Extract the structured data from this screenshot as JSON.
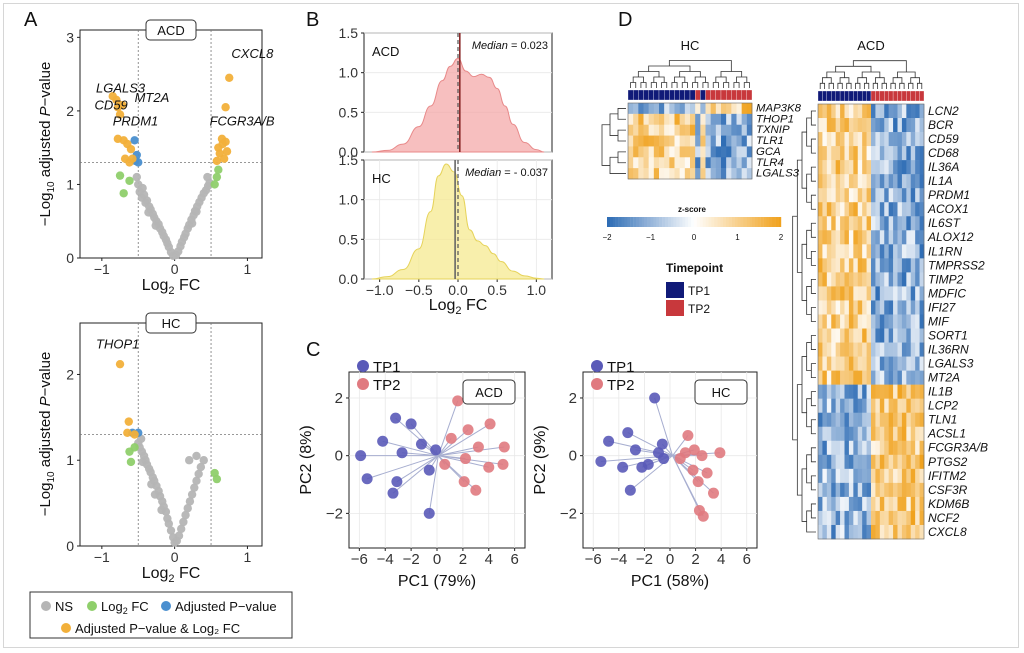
{
  "panel_letters": [
    "A",
    "B",
    "C",
    "D"
  ],
  "colors": {
    "ns": "#b5b5b5",
    "log2fc": "#8fcf6b",
    "padj": "#4a8fcf",
    "both": "#f2b03a",
    "tp1": "#5a5ab8",
    "tp2": "#e07a80",
    "tp1_bar": "#101a78",
    "tp2_bar": "#c8383c",
    "acd_fill": "#f4a9a9",
    "hc_fill": "#f6ea90",
    "neg": "#2f6db5",
    "pos": "#f0a21e"
  },
  "legend": {
    "items": [
      "NS",
      "Log₂ FC",
      "Adjusted P−value",
      "Adjusted P−value & Log₂ FC"
    ]
  },
  "chart_data": [
    {
      "id": "A-top",
      "type": "scatter",
      "facet": "ACD",
      "xlabel": "Log₂ FC",
      "ylabel": "−Log₁₀ adjusted P−value",
      "xlim": [
        -1.3,
        1.2
      ],
      "ylim": [
        0,
        3.1
      ],
      "xticks": [
        -1,
        0,
        1
      ],
      "yticks": [
        0,
        1,
        2,
        3
      ],
      "thresholds": {
        "x": [
          -0.5,
          0.5
        ],
        "y": 1.3
      },
      "points": {
        "ns": [
          [
            -0.48,
            0.9
          ],
          [
            -0.45,
            0.82
          ],
          [
            -0.42,
            0.86
          ],
          [
            -0.4,
            0.75
          ],
          [
            -0.38,
            0.78
          ],
          [
            -0.35,
            0.7
          ],
          [
            -0.33,
            0.66
          ],
          [
            -0.3,
            0.6
          ],
          [
            -0.28,
            0.55
          ],
          [
            -0.25,
            0.5
          ],
          [
            -0.22,
            0.46
          ],
          [
            -0.2,
            0.4
          ],
          [
            -0.17,
            0.35
          ],
          [
            -0.15,
            0.3
          ],
          [
            -0.12,
            0.25
          ],
          [
            -0.1,
            0.2
          ],
          [
            -0.08,
            0.15
          ],
          [
            -0.05,
            0.08
          ],
          [
            -0.02,
            0.03
          ],
          [
            0.02,
            0.04
          ],
          [
            0.05,
            0.09
          ],
          [
            0.08,
            0.16
          ],
          [
            0.1,
            0.22
          ],
          [
            0.13,
            0.28
          ],
          [
            0.15,
            0.33
          ],
          [
            0.18,
            0.4
          ],
          [
            0.2,
            0.45
          ],
          [
            0.23,
            0.52
          ],
          [
            0.26,
            0.58
          ],
          [
            0.28,
            0.64
          ],
          [
            0.31,
            0.7
          ],
          [
            0.34,
            0.76
          ],
          [
            0.37,
            0.82
          ],
          [
            0.4,
            0.88
          ],
          [
            0.43,
            0.92
          ],
          [
            0.46,
            0.98
          ],
          [
            0.48,
            1.02
          ],
          [
            -0.5,
            1.0
          ],
          [
            -0.44,
            0.95
          ],
          [
            -0.52,
            1.1
          ],
          [
            0.45,
            1.1
          ],
          [
            -0.36,
            0.62
          ],
          [
            0.3,
            0.63
          ],
          [
            -0.26,
            0.44
          ],
          [
            0.24,
            0.47
          ]
        ],
        "log2fc": [
          [
            -0.75,
            1.12
          ],
          [
            -0.7,
            0.88
          ],
          [
            0.6,
            1.2
          ],
          [
            0.58,
            1.1
          ],
          [
            -0.62,
            1.05
          ],
          [
            0.55,
            1.0
          ]
        ],
        "padj": [
          [
            -0.55,
            1.6
          ],
          [
            -0.52,
            1.4
          ],
          [
            -0.54,
            1.32
          ],
          [
            -0.5,
            1.3
          ]
        ],
        "both": [
          [
            -0.85,
            2.2
          ],
          [
            -0.8,
            2.15
          ],
          [
            -0.78,
            2.05
          ],
          [
            -0.75,
            1.95
          ],
          [
            -0.72,
            2.08
          ],
          [
            0.75,
            2.45
          ],
          [
            0.7,
            2.05
          ],
          [
            -0.78,
            1.62
          ],
          [
            -0.7,
            1.6
          ],
          [
            -0.65,
            1.55
          ],
          [
            -0.6,
            1.48
          ],
          [
            -0.68,
            1.35
          ],
          [
            -0.62,
            1.3
          ],
          [
            -0.58,
            1.35
          ],
          [
            0.65,
            1.62
          ],
          [
            0.7,
            1.58
          ],
          [
            0.6,
            1.5
          ],
          [
            0.62,
            1.42
          ],
          [
            0.68,
            1.35
          ],
          [
            0.58,
            1.32
          ],
          [
            0.66,
            1.55
          ],
          [
            0.72,
            1.45
          ]
        ]
      },
      "labels": [
        {
          "text": "CXCL8",
          "x": 0.78,
          "y": 2.72
        },
        {
          "text": "LGALS3",
          "x": -1.08,
          "y": 2.25
        },
        {
          "text": "MT2A",
          "x": -0.55,
          "y": 2.12
        },
        {
          "text": "CD59",
          "x": -1.1,
          "y": 2.02
        },
        {
          "text": "PRDM1",
          "x": -0.85,
          "y": 1.8
        },
        {
          "text": "FCGR3A/B",
          "x": 0.48,
          "y": 1.8
        }
      ]
    },
    {
      "id": "A-bottom",
      "type": "scatter",
      "facet": "HC",
      "xlabel": "Log₂ FC",
      "ylabel": "−Log₁₀ adjusted P−value",
      "xlim": [
        -1.3,
        1.2
      ],
      "ylim": [
        0,
        2.6
      ],
      "xticks": [
        -1,
        0,
        1
      ],
      "yticks": [
        0,
        1,
        2
      ],
      "thresholds": {
        "x": [
          -0.5,
          0.5
        ],
        "y": 1.3
      },
      "points": {
        "ns": [
          [
            -0.48,
            1.15
          ],
          [
            -0.45,
            1.1
          ],
          [
            -0.42,
            1.05
          ],
          [
            -0.4,
            1.0
          ],
          [
            -0.38,
            0.95
          ],
          [
            -0.35,
            0.9
          ],
          [
            -0.33,
            0.86
          ],
          [
            -0.3,
            0.8
          ],
          [
            -0.28,
            0.76
          ],
          [
            -0.25,
            0.7
          ],
          [
            -0.22,
            0.64
          ],
          [
            -0.2,
            0.58
          ],
          [
            -0.17,
            0.52
          ],
          [
            -0.15,
            0.46
          ],
          [
            -0.12,
            0.4
          ],
          [
            -0.1,
            0.32
          ],
          [
            -0.08,
            0.26
          ],
          [
            -0.05,
            0.18
          ],
          [
            -0.02,
            0.1
          ],
          [
            0.0,
            0.04
          ],
          [
            0.03,
            0.06
          ],
          [
            0.06,
            0.12
          ],
          [
            0.09,
            0.2
          ],
          [
            0.12,
            0.28
          ],
          [
            0.15,
            0.36
          ],
          [
            0.18,
            0.44
          ],
          [
            0.21,
            0.52
          ],
          [
            0.24,
            0.6
          ],
          [
            0.27,
            0.68
          ],
          [
            0.3,
            0.76
          ],
          [
            0.33,
            0.84
          ],
          [
            0.36,
            0.92
          ],
          [
            0.4,
            1.0
          ],
          [
            0.3,
            1.05
          ],
          [
            0.2,
            1.0
          ],
          [
            -0.5,
            1.2
          ],
          [
            -0.46,
            1.25
          ],
          [
            -0.44,
            0.98
          ],
          [
            -0.32,
            0.72
          ],
          [
            -0.27,
            0.6
          ],
          [
            -0.18,
            0.42
          ]
        ],
        "log2fc": [
          [
            -0.62,
            1.1
          ],
          [
            -0.6,
            0.98
          ],
          [
            -0.55,
            1.15
          ],
          [
            0.55,
            0.85
          ],
          [
            0.58,
            0.78
          ]
        ],
        "padj": [
          [
            -0.58,
            1.32
          ],
          [
            -0.5,
            1.32
          ]
        ],
        "both": [
          [
            -0.75,
            2.12
          ],
          [
            -0.63,
            1.45
          ],
          [
            -0.65,
            1.32
          ],
          [
            -0.55,
            1.3
          ]
        ]
      },
      "labels": [
        {
          "text": "THOP1",
          "x": -1.08,
          "y": 2.3
        }
      ]
    },
    {
      "id": "B",
      "type": "area",
      "facets": [
        "ACD",
        "HC"
      ],
      "xlabel": "Log₂ FC",
      "xlim": [
        -1.2,
        1.2
      ],
      "ylim": [
        0,
        1.5
      ],
      "xticks": [
        -1.0,
        -0.5,
        0.0,
        0.5,
        1.0
      ],
      "yticks": [
        0.0,
        0.5,
        1.0,
        1.5
      ],
      "series": [
        {
          "name": "ACD",
          "median": 0.023,
          "median_label": "Median = 0.023",
          "x": [
            -1.1,
            -0.9,
            -0.7,
            -0.5,
            -0.35,
            -0.2,
            -0.1,
            0,
            0.1,
            0.2,
            0.3,
            0.4,
            0.5,
            0.6,
            0.7,
            0.85,
            1.0,
            1.1
          ],
          "y": [
            0.0,
            0.02,
            0.1,
            0.32,
            0.58,
            0.9,
            1.08,
            1.18,
            1.02,
            0.95,
            0.98,
            0.94,
            0.8,
            0.58,
            0.35,
            0.12,
            0.03,
            0.0
          ]
        },
        {
          "name": "HC",
          "median": -0.037,
          "median_label": "Median = - 0.037",
          "x": [
            -1.1,
            -0.9,
            -0.7,
            -0.5,
            -0.35,
            -0.25,
            -0.15,
            -0.05,
            0.05,
            0.15,
            0.25,
            0.35,
            0.45,
            0.55,
            0.7,
            0.85,
            1.0,
            1.1
          ],
          "y": [
            0.0,
            0.03,
            0.12,
            0.38,
            0.85,
            1.3,
            1.45,
            1.35,
            1.05,
            0.62,
            0.48,
            0.42,
            0.32,
            0.22,
            0.1,
            0.04,
            0.01,
            0.0
          ]
        }
      ]
    },
    {
      "id": "C",
      "type": "scatter",
      "facets": [
        "ACD",
        "HC"
      ],
      "legend": [
        "TP1",
        "TP2"
      ],
      "xticks": [
        -6,
        -4,
        -2,
        0,
        2,
        4,
        6
      ],
      "yticks": [
        -2,
        0,
        2
      ],
      "xlim": [
        -6.8,
        6.8
      ],
      "ylim": [
        -3.2,
        2.9
      ],
      "plots": [
        {
          "name": "ACD",
          "xlabel": "PC1 (79%)",
          "ylabel": "PC2 (8%)",
          "centroid": [
            0.1,
            0.0
          ],
          "tp1": [
            [
              -5.9,
              0.0
            ],
            [
              -5.4,
              -0.8
            ],
            [
              -4.2,
              0.5
            ],
            [
              -3.2,
              1.3
            ],
            [
              -2.7,
              0.1
            ],
            [
              -3.4,
              -1.3
            ],
            [
              -3.1,
              -0.9
            ],
            [
              -2.0,
              1.1
            ],
            [
              -0.6,
              -2.0
            ],
            [
              -1.2,
              0.4
            ],
            [
              -0.1,
              0.2
            ],
            [
              -0.6,
              -0.5
            ]
          ],
          "tp2": [
            [
              1.6,
              1.9
            ],
            [
              0.6,
              -0.3
            ],
            [
              1.1,
              0.6
            ],
            [
              2.2,
              -0.1
            ],
            [
              2.4,
              0.9
            ],
            [
              2.1,
              -0.9
            ],
            [
              3.0,
              -1.2
            ],
            [
              3.2,
              0.3
            ],
            [
              4.1,
              1.1
            ],
            [
              5.2,
              0.3
            ],
            [
              5.1,
              -0.3
            ],
            [
              4.0,
              -0.4
            ]
          ]
        },
        {
          "name": "HC",
          "xlabel": "PC1 (58%)",
          "ylabel": "PC2 (9%)",
          "centroid": [
            0.2,
            0.0
          ],
          "tp1": [
            [
              -5.4,
              -0.2
            ],
            [
              -4.8,
              0.5
            ],
            [
              -3.7,
              -0.4
            ],
            [
              -3.3,
              0.8
            ],
            [
              -3.1,
              -1.2
            ],
            [
              -2.7,
              0.2
            ],
            [
              -2.2,
              -0.4
            ],
            [
              -1.7,
              -0.3
            ],
            [
              -1.2,
              2.0
            ],
            [
              -0.9,
              0.1
            ],
            [
              -0.6,
              0.4
            ],
            [
              -0.5,
              -0.1
            ]
          ],
          "tp2": [
            [
              1.4,
              0.7
            ],
            [
              1.2,
              0.1
            ],
            [
              0.8,
              -0.1
            ],
            [
              1.9,
              0.2
            ],
            [
              2.2,
              -0.9
            ],
            [
              1.8,
              -0.5
            ],
            [
              2.5,
              0.0
            ],
            [
              2.9,
              -0.6
            ],
            [
              3.4,
              -1.3
            ],
            [
              3.9,
              0.1
            ],
            [
              2.6,
              -2.1
            ],
            [
              2.3,
              -1.9
            ]
          ]
        }
      ]
    },
    {
      "id": "D",
      "type": "heatmap",
      "colorbar": {
        "title": "z-score",
        "ticks": [
          "−2",
          "−1",
          "0",
          "1",
          "2"
        ]
      },
      "timepoint_legend": {
        "title": "Timepoint",
        "entries": [
          "TP1",
          "TP2"
        ]
      },
      "heatmaps": [
        {
          "name": "HC",
          "columns": 24,
          "tp2_columns": [
            13,
            15,
            16,
            17,
            18,
            19,
            20,
            21,
            22,
            23
          ],
          "rows": [
            "MAP3K8",
            "THOP1",
            "TXNIP",
            "TLR1",
            "GCA",
            "TLR4",
            "LGALS3"
          ]
        },
        {
          "name": "ACD",
          "columns": 24,
          "tp2_columns": [
            12,
            13,
            14,
            15,
            16,
            17,
            18,
            19,
            20,
            21,
            22,
            23
          ],
          "rows": [
            "LCN2",
            "BCR",
            "CD59",
            "CD68",
            "IL36A",
            "IL1A",
            "PRDM1",
            "ACOX1",
            "IL6ST",
            "ALOX12",
            "IL1RN",
            "TMPRSS2",
            "TIMP2",
            "MDFIC",
            "IFI27",
            "MIF",
            "SORT1",
            "IL36RN",
            "LGALS3",
            "MT2A",
            "IL1B",
            "LCP2",
            "TLN1",
            "ACSL1",
            "FCGR3A/B",
            "PTGS2",
            "IFITM2",
            "CSF3R",
            "KDM6B",
            "NCF2",
            "CXCL8"
          ]
        }
      ]
    }
  ]
}
